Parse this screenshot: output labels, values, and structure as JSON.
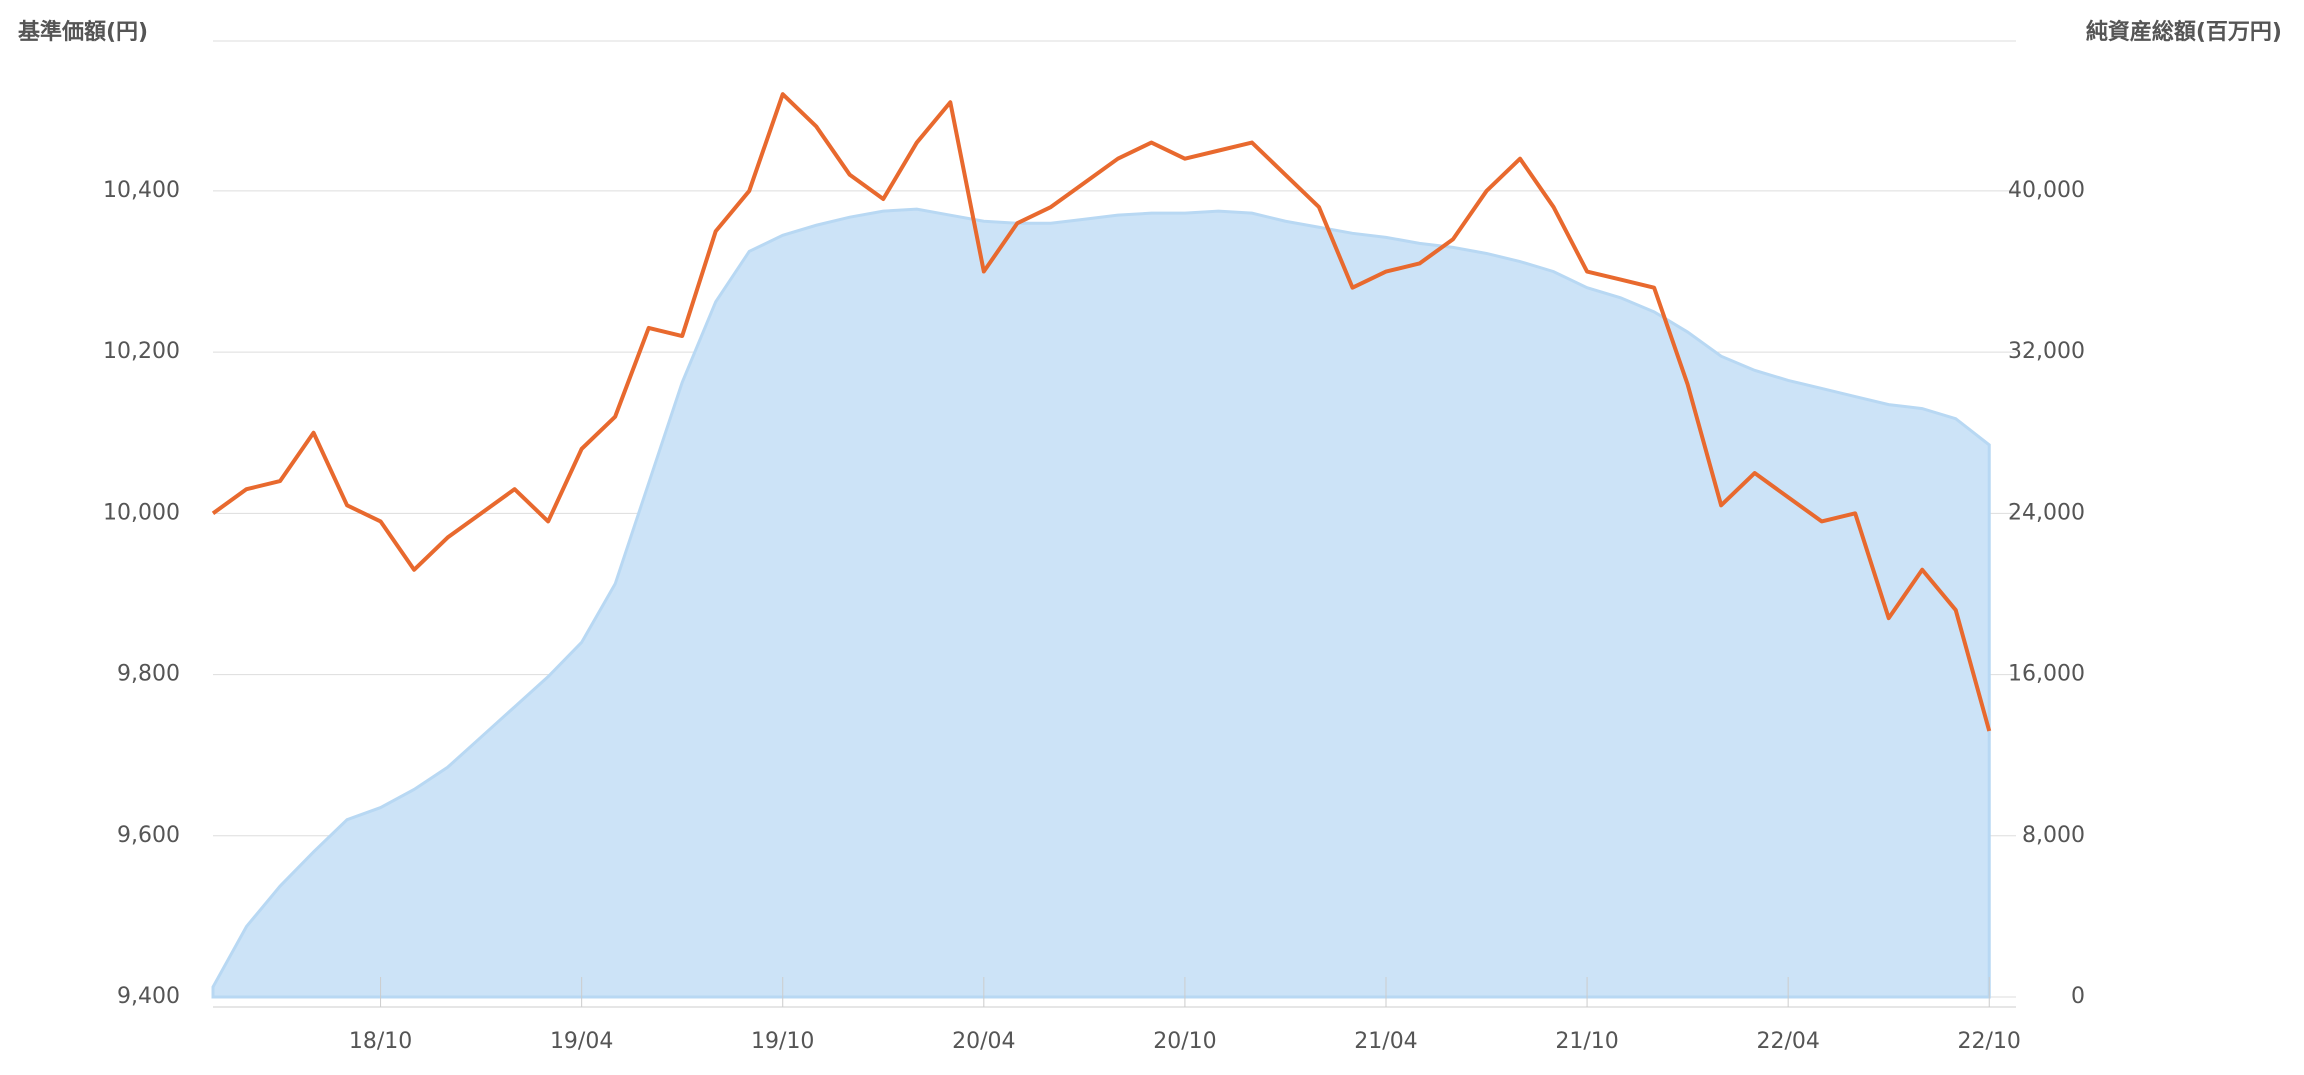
{
  "chart_data": {
    "type": "line",
    "y_label": "基準価額(円)",
    "y2_label": "純資産総額(百万円)",
    "x": [
      "18/05",
      "18/06",
      "18/07",
      "18/08",
      "18/09",
      "18/10",
      "18/11",
      "18/12",
      "19/01",
      "19/02",
      "19/03",
      "19/04",
      "19/05",
      "19/06",
      "19/07",
      "19/08",
      "19/09",
      "19/10",
      "19/11",
      "19/12",
      "20/01",
      "20/02",
      "20/03",
      "20/04",
      "20/05",
      "20/06",
      "20/07",
      "20/08",
      "20/09",
      "20/10",
      "20/11",
      "20/12",
      "21/01",
      "21/02",
      "21/03",
      "21/04",
      "21/05",
      "21/06",
      "21/07",
      "21/08",
      "21/09",
      "21/10",
      "21/11",
      "21/12",
      "22/01",
      "22/02",
      "22/03",
      "22/04",
      "22/05",
      "22/06",
      "22/07",
      "22/08",
      "22/09",
      "22/10"
    ],
    "xticks": [
      "18/10",
      "19/04",
      "19/10",
      "20/04",
      "20/10",
      "21/04",
      "21/10",
      "22/04",
      "22/10"
    ],
    "ylim": [
      9400,
      10586
    ],
    "yticks": [
      {
        "value": 9400,
        "label": "9,400"
      },
      {
        "value": 9600,
        "label": "9,600"
      },
      {
        "value": 9800,
        "label": "9,800"
      },
      {
        "value": 10000,
        "label": "10,000"
      },
      {
        "value": 10200,
        "label": "10,200"
      },
      {
        "value": 10400,
        "label": "10,400"
      }
    ],
    "y2lim": [
      0,
      47444
    ],
    "y2ticks": [
      0,
      {
        "value": 8000,
        "label": "8,000"
      },
      {
        "value": 16000,
        "label": "16,000"
      },
      {
        "value": 24000,
        "label": "24,000"
      },
      {
        "value": 32000,
        "label": "32,000"
      },
      {
        "value": 40000,
        "label": "40,000"
      }
    ],
    "grid": true,
    "series": [
      {
        "name": "純資産総額",
        "type": "area",
        "axis": "y2",
        "color": "#cce3f7",
        "values": [
          500,
          3500,
          5500,
          7200,
          8800,
          9400,
          10300,
          11400,
          12900,
          14400,
          15900,
          17600,
          20500,
          25500,
          30500,
          34500,
          37000,
          37800,
          38300,
          38700,
          39000,
          39100,
          38800,
          38500,
          38400,
          38400,
          38600,
          38800,
          38900,
          38900,
          39000,
          38900,
          38500,
          38200,
          37900,
          37700,
          37400,
          37200,
          36900,
          36500,
          36000,
          35200,
          34700,
          34000,
          33000,
          31800,
          31100,
          30600,
          30200,
          29800,
          29400,
          29200,
          28700,
          27400
        ]
      },
      {
        "name": "基準価額",
        "type": "line",
        "axis": "y",
        "color": "#e8692e",
        "values": [
          10000,
          10030,
          10040,
          10100,
          10010,
          9990,
          9930,
          9970,
          10000,
          10030,
          9990,
          10080,
          10120,
          10230,
          10220,
          10350,
          10400,
          10520,
          10480,
          10420,
          10390,
          10460,
          10510,
          10300,
          10360,
          10380,
          10410,
          10440,
          10460,
          10440,
          10450,
          10460,
          10420,
          10380,
          10280,
          10300,
          10310,
          10340,
          10400,
          10440,
          10380,
          10300,
          10290,
          10280,
          10160,
          10010,
          10050,
          10020,
          9990,
          10000,
          9870,
          9930,
          9880,
          9730
        ]
      }
    ]
  }
}
